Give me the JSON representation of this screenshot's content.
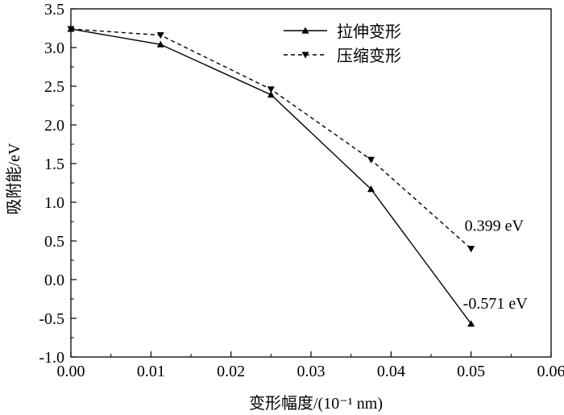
{
  "chart_data": {
    "type": "line",
    "title": "",
    "xlabel": "变形幅度/(10⁻¹ nm)",
    "ylabel": "吸附能/eV",
    "xlim": [
      0.0,
      0.06
    ],
    "ylim": [
      -1.0,
      3.5
    ],
    "xticks": [
      "0.00",
      "0.01",
      "0.02",
      "0.03",
      "0.04",
      "0.05",
      "0.06"
    ],
    "yticks": [
      "-1.0",
      "-0.5",
      "0.0",
      "0.5",
      "1.0",
      "1.5",
      "2.0",
      "2.5",
      "3.0",
      "3.5"
    ],
    "grid": false,
    "legend_position": "top-center",
    "series": [
      {
        "name": "拉伸变形",
        "style": "solid",
        "marker": "triangle-up",
        "color": "#000000",
        "x": [
          0.0,
          0.0112,
          0.025,
          0.0375,
          0.05
        ],
        "y": [
          3.24,
          3.04,
          2.39,
          1.17,
          -0.571
        ]
      },
      {
        "name": "压缩变形",
        "style": "dashed",
        "marker": "triangle-down",
        "color": "#000000",
        "x": [
          0.0,
          0.0112,
          0.025,
          0.0375,
          0.05
        ],
        "y": [
          3.24,
          3.16,
          2.46,
          1.55,
          0.399
        ]
      }
    ],
    "annotations": [
      {
        "text": "0.399 eV",
        "x": 0.05,
        "y": 0.399,
        "series": 1
      },
      {
        "text": "-0.571 eV",
        "x": 0.05,
        "y": -0.571,
        "series": 0
      }
    ]
  }
}
